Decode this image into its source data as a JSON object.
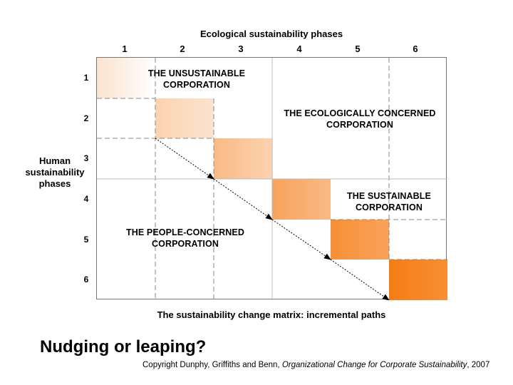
{
  "matrix": {
    "top_title": "Ecological sustainability phases",
    "left_title": [
      "Human",
      "sustainability",
      "phases"
    ],
    "columns": [
      "1",
      "2",
      "3",
      "4",
      "5",
      "6"
    ],
    "rows": [
      "1",
      "2",
      "3",
      "4",
      "5",
      "6"
    ],
    "regions": {
      "unsustainable": [
        "THE UNSUSTAINABLE",
        "CORPORATION"
      ],
      "ecological": [
        "THE ECOLOGICALLY CONCERNED",
        "CORPORATION"
      ],
      "sustainable": [
        "THE SUSTAINABLE",
        "CORPORATION"
      ],
      "people": [
        "THE PEOPLE-CONCERNED",
        "CORPORATION"
      ]
    },
    "diagonal_colors": [
      "#fbe3cf",
      "#fcd3b0",
      "#f9b985",
      "#f8a35b",
      "#f78f35",
      "#f57d13"
    ],
    "caption": "The sustainability change matrix: incremental paths"
  },
  "slide": {
    "heading": "Nudging or leaping?",
    "copyright_prefix": "Copyright Dunphy, Griffiths and Benn, ",
    "copyright_title": "Organizational Change for Corporate Sustainability",
    "copyright_suffix": ", 2007"
  }
}
